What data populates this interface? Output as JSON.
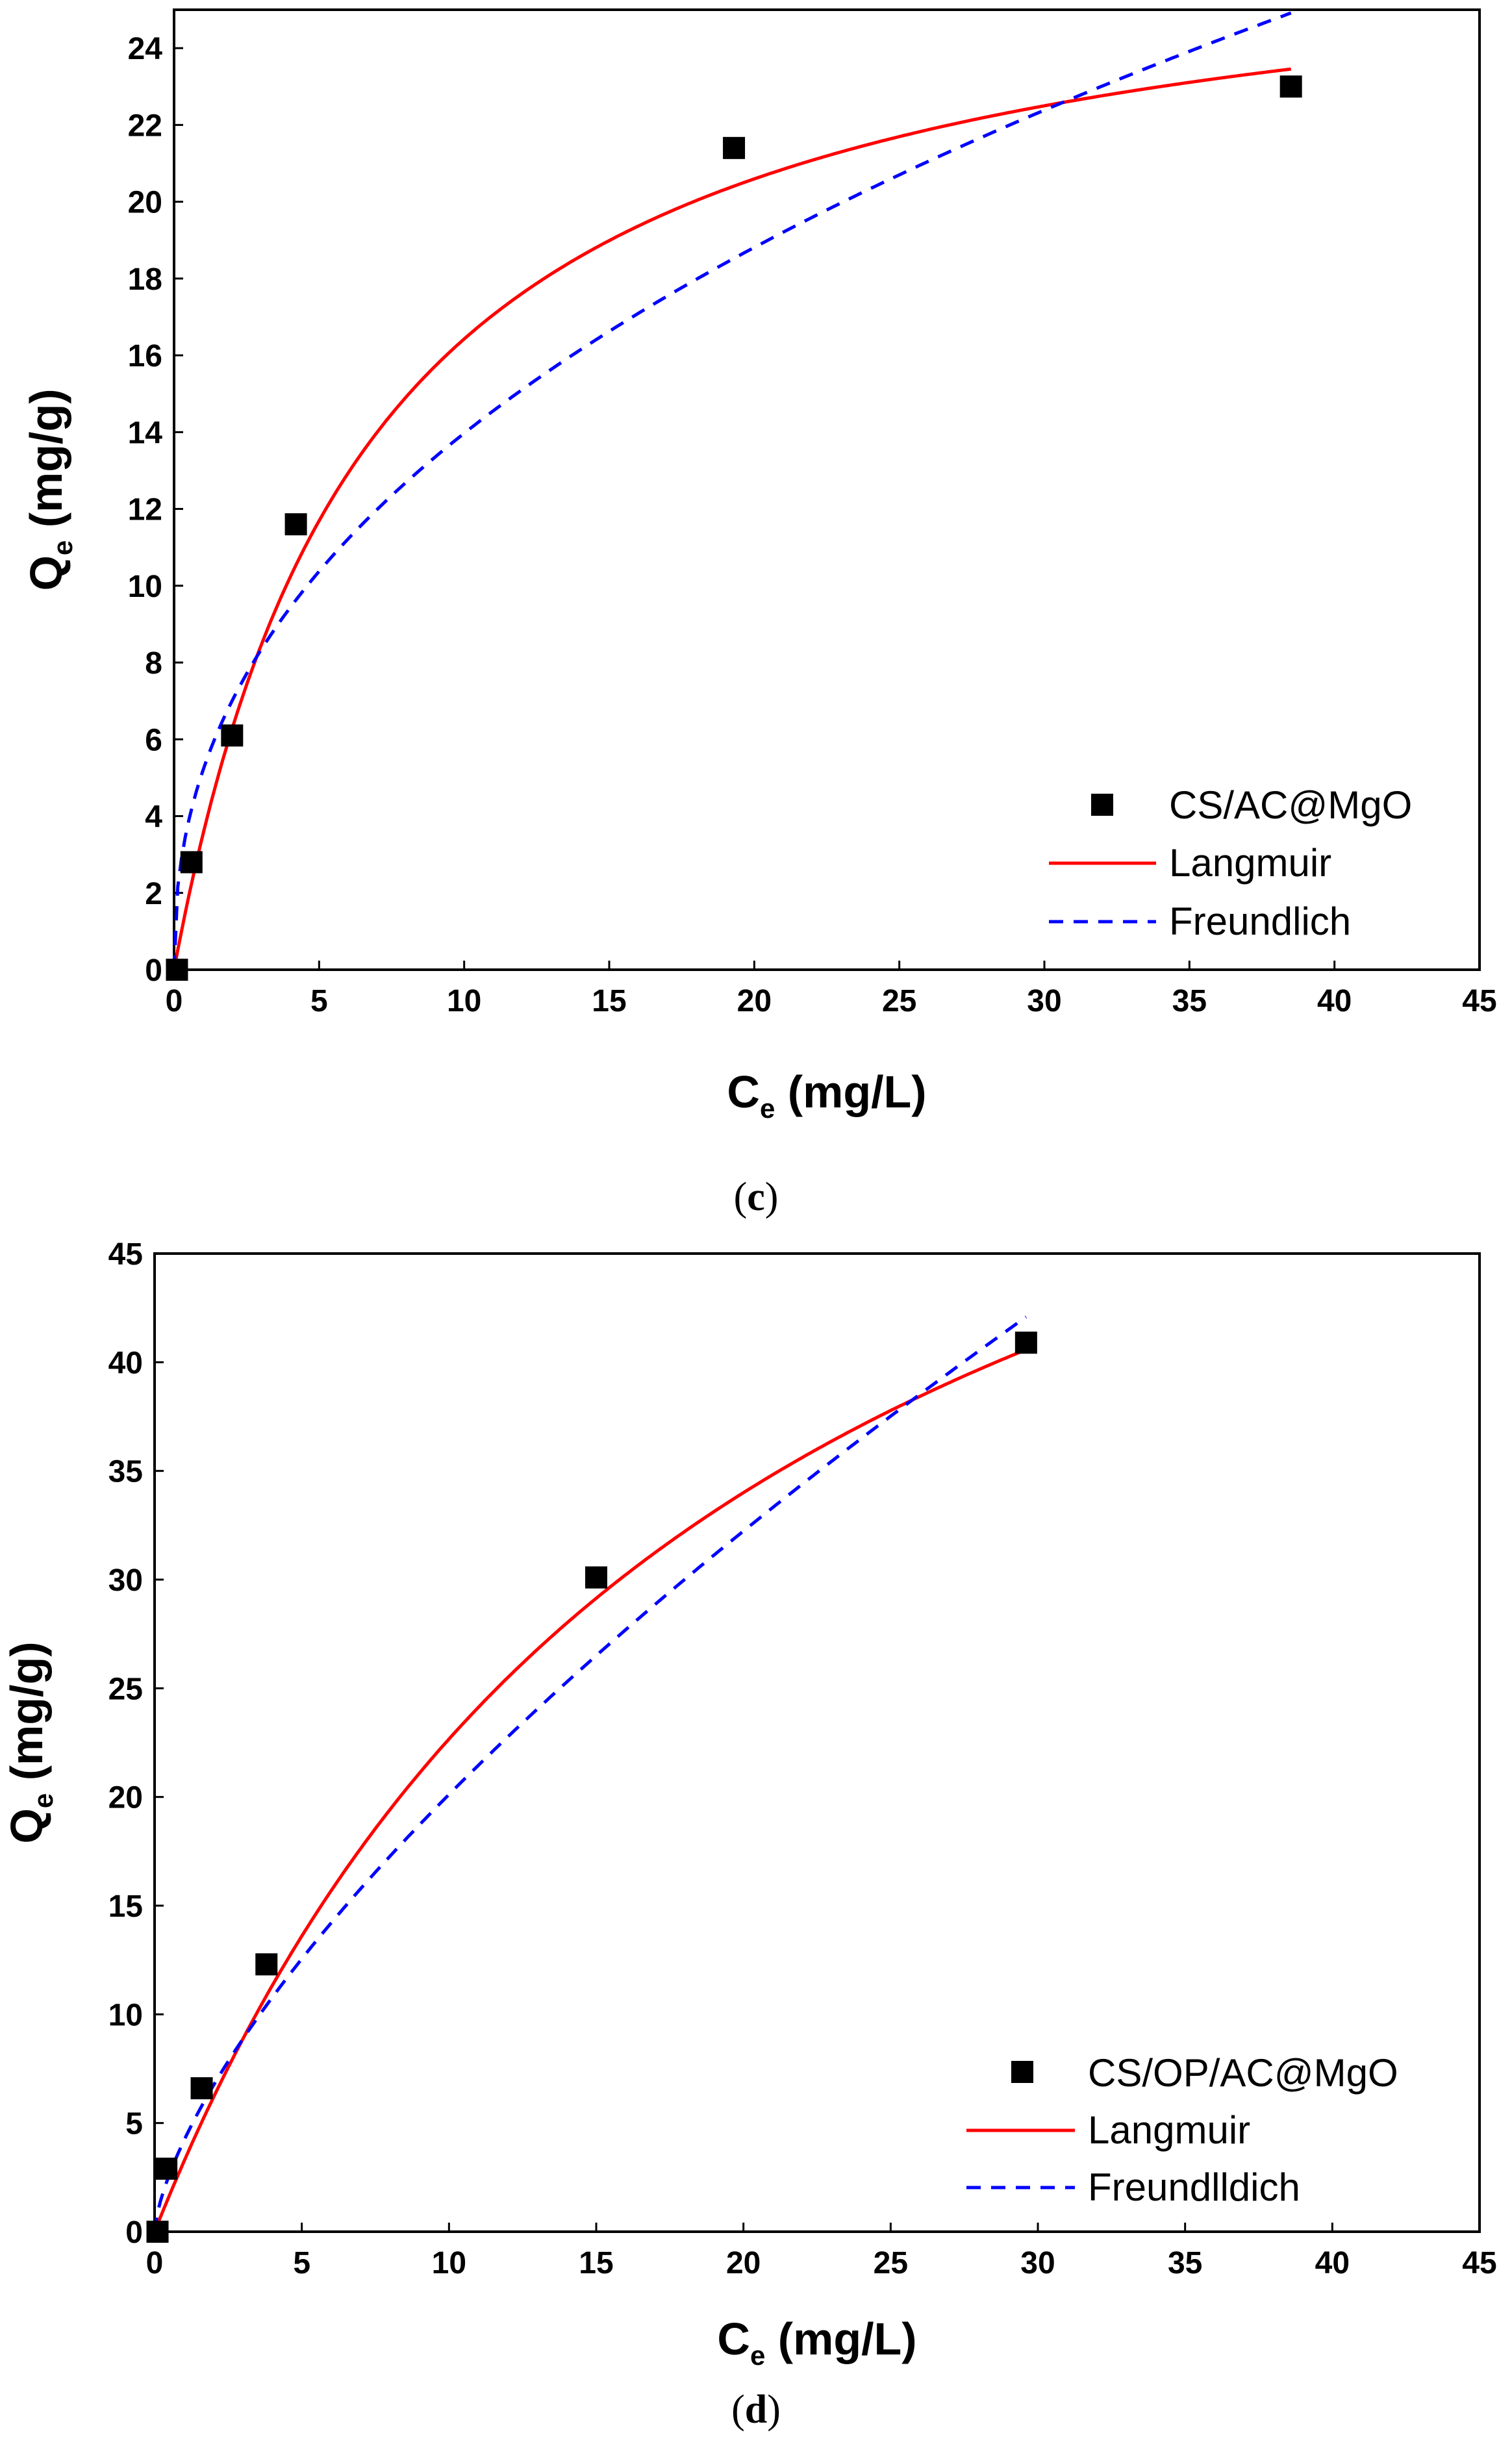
{
  "chart_data": [
    {
      "type": "scatter",
      "caption_open": "(",
      "caption_letter": "c",
      "caption_close": ")",
      "xlabel": {
        "main": "C",
        "sub": "e",
        "unit": " (mg/L)"
      },
      "ylabel": {
        "main": "Q",
        "sub": "e",
        "unit": " (mg/g)"
      },
      "xlim": [
        0,
        45
      ],
      "ylim": [
        0,
        25
      ],
      "xticks": [
        0,
        5,
        10,
        15,
        20,
        25,
        30,
        35,
        40,
        45
      ],
      "yticks": [
        0,
        2,
        4,
        6,
        8,
        10,
        12,
        14,
        16,
        18,
        20,
        22,
        24
      ],
      "grid": false,
      "legend_position": "bottom-right",
      "series": [
        {
          "name": "CS/AC@MgO",
          "kind": "points",
          "color": "#000000",
          "x": [
            0.1,
            0.6,
            2.0,
            4.2,
            19.3,
            38.5
          ],
          "y": [
            0.0,
            2.8,
            6.1,
            11.6,
            21.4,
            23.0
          ]
        },
        {
          "name": "Langmuir",
          "kind": "line",
          "color": "#ff0000",
          "dash": "solid",
          "model": "langmuir",
          "qmax": 27.6,
          "kl": 0.147,
          "xrange": [
            0,
            38.5
          ]
        },
        {
          "name": "Freundlich",
          "kind": "line",
          "color": "#0000ff",
          "dash": "dashed",
          "model": "freundlich",
          "kf": 5.2,
          "n": 2.33,
          "xrange": [
            0,
            38.5
          ]
        }
      ]
    },
    {
      "type": "scatter",
      "caption_open": "(",
      "caption_letter": "d",
      "caption_close": ")",
      "xlabel": {
        "main": "C",
        "sub": "e",
        "unit": " (mg/L)"
      },
      "ylabel": {
        "main": "Q",
        "sub": "e",
        "unit": " (mg/g)"
      },
      "xlim": [
        0,
        45
      ],
      "ylim": [
        0,
        45
      ],
      "xticks": [
        0,
        5,
        10,
        15,
        20,
        25,
        30,
        35,
        40,
        45
      ],
      "yticks": [
        0,
        5,
        10,
        15,
        20,
        25,
        30,
        35,
        40,
        45
      ],
      "grid": false,
      "legend_position": "bottom-right",
      "series": [
        {
          "name": "CS/OP/AC@MgO",
          "kind": "points",
          "color": "#000000",
          "x": [
            0.1,
            0.4,
            1.6,
            3.8,
            15.0,
            29.6
          ],
          "y": [
            0.0,
            2.9,
            6.6,
            12.3,
            30.1,
            40.9
          ]
        },
        {
          "name": "Langmuir",
          "kind": "line",
          "color": "#ff0000",
          "dash": "solid",
          "model": "langmuir",
          "qmax": 68.0,
          "kl": 0.05,
          "xrange": [
            0,
            29.6
          ]
        },
        {
          "name": "Freundlldich",
          "kind": "line",
          "color": "#0000ff",
          "dash": "dashed",
          "model": "freundlich",
          "kf": 4.2,
          "n": 1.47,
          "xrange": [
            0,
            29.6
          ]
        }
      ]
    }
  ]
}
